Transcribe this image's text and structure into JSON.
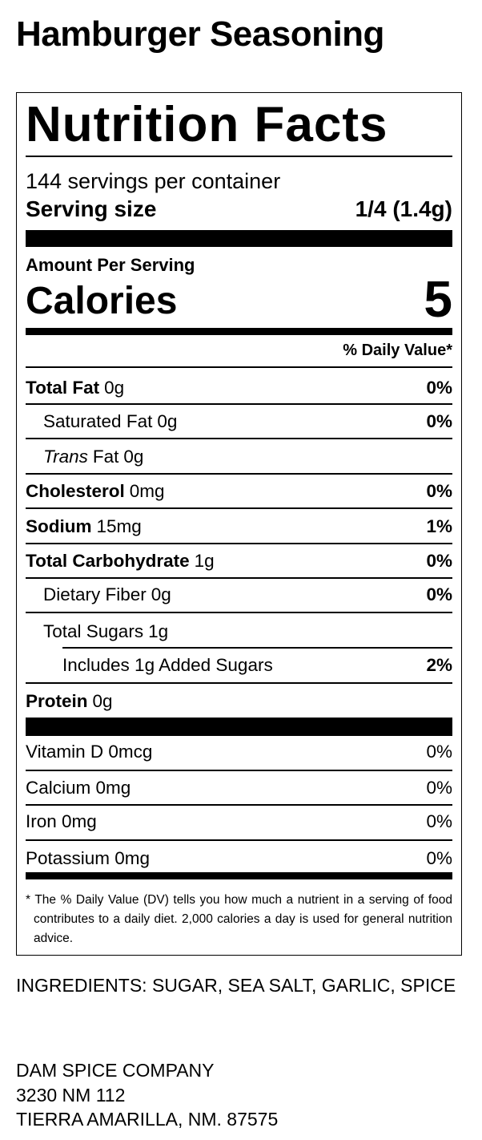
{
  "header": {
    "title": "Hamburger Seasoning"
  },
  "label": {
    "heading": "Nutrition Facts",
    "servings": "144 servings per container",
    "serving_size_label": "Serving size",
    "serving_size_value": "1/4 (1.4g)",
    "amount_per_serving": "Amount Per Serving",
    "calories_label": "Calories",
    "calories_value": "5",
    "daily_value_header": "% Daily Value*",
    "nutrients": [
      {
        "name": "Total Fat",
        "amount": "0g",
        "dv": "0%"
      },
      {
        "name": "Saturated Fat",
        "amount": "0g",
        "dv": "0%"
      },
      {
        "name_italic": "Trans",
        "name": "Fat",
        "amount": "0g"
      },
      {
        "name": "Cholesterol",
        "amount": "0mg",
        "dv": "0%"
      },
      {
        "name": "Sodium",
        "amount": "15mg",
        "dv": "1%"
      },
      {
        "name": "Total Carbohydrate",
        "amount": "1g",
        "dv": "0%"
      },
      {
        "name": "Dietary Fiber",
        "amount": "0g",
        "dv": "0%"
      },
      {
        "name": "Total Sugars",
        "amount": "1g"
      },
      {
        "name": "Includes 1g Added Sugars",
        "dv": "2%"
      },
      {
        "name": "Protein",
        "amount": "0g"
      }
    ],
    "vitamins": [
      {
        "name": "Vitamin D 0mcg",
        "dv": "0%"
      },
      {
        "name": "Calcium 0mg",
        "dv": "0%"
      },
      {
        "name": "Iron 0mg",
        "dv": "0%"
      },
      {
        "name": "Potassium 0mg",
        "dv": "0%"
      }
    ],
    "footnote": "* The % Daily Value (DV) tells you how much a nutrient in a serving of food contributes to a daily diet. 2,000 calories a day is used for general nutrition advice."
  },
  "ingredients": "INGREDIENTS: SUGAR, SEA SALT, GARLIC, SPICE",
  "company": [
    "DAM SPICE COMPANY",
    "3230 NM 112",
    "TIERRA AMARILLA, NM. 87575"
  ]
}
